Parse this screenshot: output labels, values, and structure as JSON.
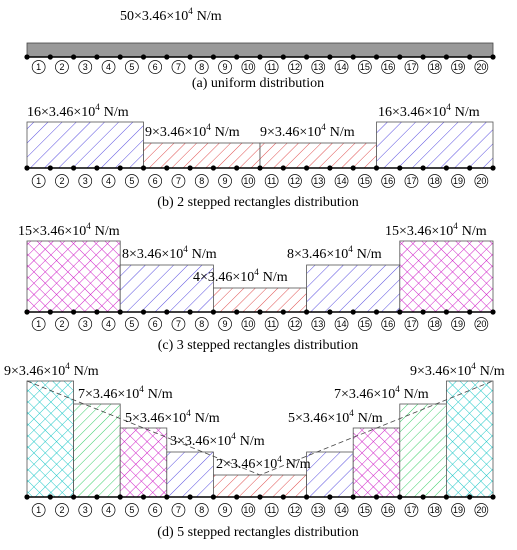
{
  "nodes": [
    "1",
    "2",
    "3",
    "4",
    "5",
    "6",
    "7",
    "8",
    "9",
    "10",
    "11",
    "12",
    "13",
    "14",
    "15",
    "16",
    "17",
    "18",
    "19",
    "20"
  ],
  "panels": [
    {
      "caption": "(a) uniform distribution",
      "labels": [
        {
          "text": "50×3.46×10",
          "sup": "4",
          "unit": "N/m"
        }
      ]
    },
    {
      "caption": "(b) 2 stepped rectangles distribution",
      "labels": [
        {
          "text": "16×3.46×10",
          "sup": "4",
          "unit": "N/m"
        },
        {
          "text": "9×3.46×10",
          "sup": "4",
          "unit": "N/m"
        },
        {
          "text": "9×3.46×10",
          "sup": "4",
          "unit": "N/m"
        },
        {
          "text": "16×3.46×10",
          "sup": "4",
          "unit": "N/m"
        }
      ]
    },
    {
      "caption": "(c) 3 stepped rectangles distribution",
      "labels": [
        {
          "text": "15×3.46×10",
          "sup": "4",
          "unit": "N/m"
        },
        {
          "text": "8×3.46×10",
          "sup": "4",
          "unit": "N/m"
        },
        {
          "text": "4×3.46×10",
          "sup": "4",
          "unit": "N/m"
        },
        {
          "text": "8×3.46×10",
          "sup": "4",
          "unit": "N/m"
        },
        {
          "text": "15×3.46×10",
          "sup": "4",
          "unit": "N/m"
        }
      ]
    },
    {
      "caption": "(d) 5 stepped rectangles distribution",
      "labels": [
        {
          "text": "9×3.46×10",
          "sup": "4",
          "unit": "N/m"
        },
        {
          "text": "7×3.46×10",
          "sup": "4",
          "unit": "N/m"
        },
        {
          "text": "5×3.46×10",
          "sup": "4",
          "unit": "N/m"
        },
        {
          "text": "3×3.46×10",
          "sup": "4",
          "unit": "N/m"
        },
        {
          "text": "2×3.46×10",
          "sup": "4",
          "unit": "N/m"
        },
        {
          "text": "5×3.46×10",
          "sup": "4",
          "unit": "N/m"
        },
        {
          "text": "7×3.46×10",
          "sup": "4",
          "unit": "N/m"
        },
        {
          "text": "9×3.46×10",
          "sup": "4",
          "unit": "N/m"
        }
      ]
    }
  ]
}
